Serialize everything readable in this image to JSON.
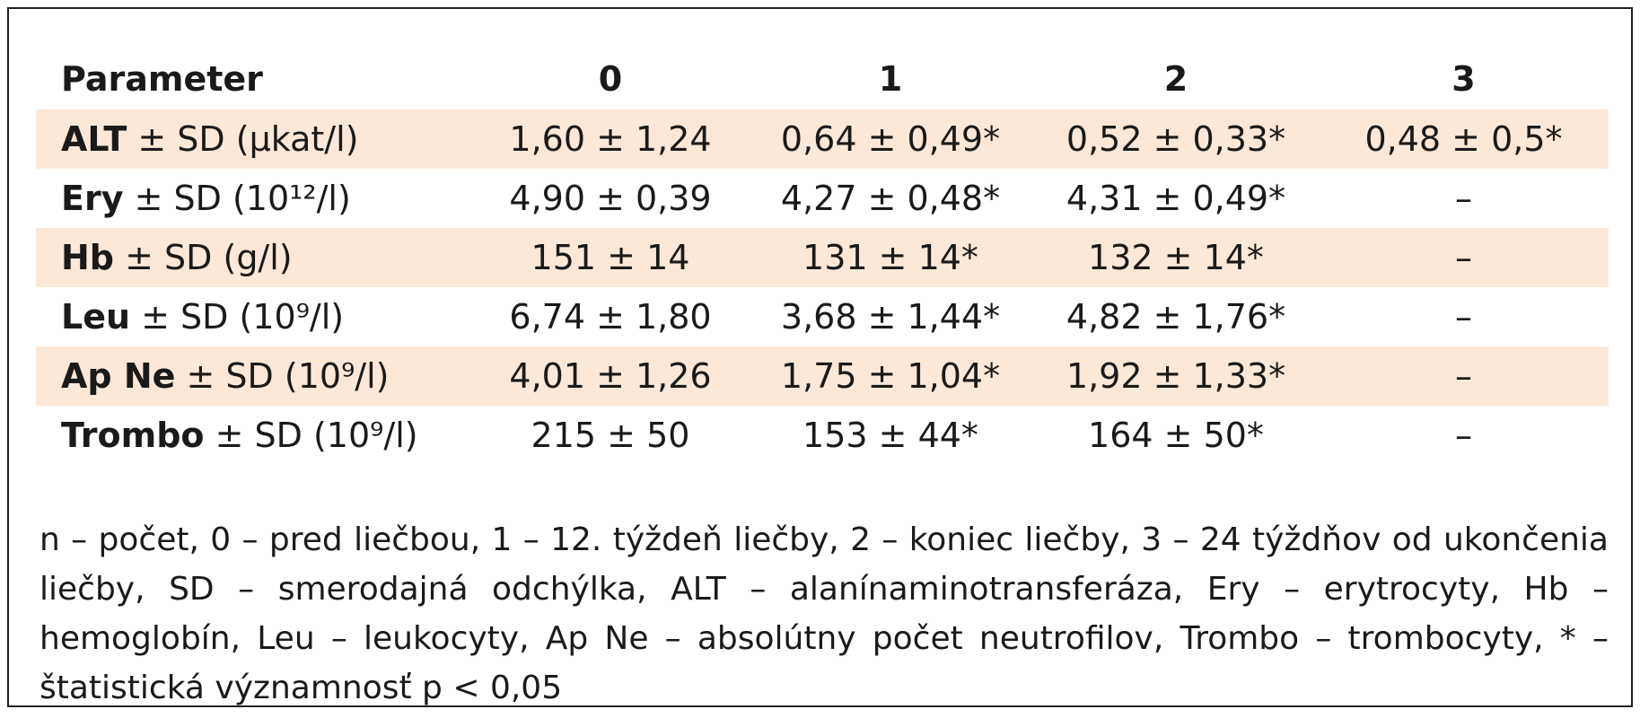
{
  "table": {
    "headers": [
      "Parameter",
      "0",
      "1",
      "2",
      "3"
    ],
    "rows": [
      {
        "name": "ALT",
        "unit": "± SD (µkat/l)",
        "values": [
          "1,60 ± 1,24",
          "0,64 ± 0,49*",
          "0,52 ± 0,33*",
          "0,48 ± 0,5*"
        ]
      },
      {
        "name": "Ery",
        "unit": "± SD (10¹²/l)",
        "values": [
          "4,90 ± 0,39",
          "4,27 ± 0,48*",
          "4,31 ± 0,49*",
          "–"
        ]
      },
      {
        "name": "Hb",
        "unit": "± SD (g/l)",
        "values": [
          "151 ± 14",
          "131 ± 14*",
          "132 ± 14*",
          "–"
        ]
      },
      {
        "name": "Leu",
        "unit": "± SD (10⁹/l)",
        "values": [
          "6,74 ± 1,80",
          "3,68 ± 1,44*",
          "4,82 ± 1,76*",
          "–"
        ]
      },
      {
        "name": "Ap Ne",
        "unit": "± SD (10⁹/l)",
        "values": [
          "4,01 ± 1,26",
          "1,75 ± 1,04*",
          "1,92 ± 1,33*",
          "–"
        ]
      },
      {
        "name": "Trombo",
        "unit": "± SD (10⁹/l)",
        "values": [
          "215 ± 50",
          "153 ± 44*",
          "164 ± 50*",
          "–"
        ]
      }
    ]
  },
  "footnote": "n – počet, 0 – pred liečbou, 1 – 12. týždeň liečby, 2 – koniec liečby, 3 – 24 týždňov od ukončenia liečby, SD – smerodajná odchýlka, ALT – alanínaminotransferáza, Ery – erytrocyty, Hb – hemoglobín, Leu – leukocyty, Ap Ne – absolútny počet neutrofilov, Trombo – trombocyty, * – štatistická významnosť p < 0,05",
  "colors": {
    "row_shade": "#fbe8d8",
    "border": "#222222",
    "text": "#1a1a1a"
  }
}
